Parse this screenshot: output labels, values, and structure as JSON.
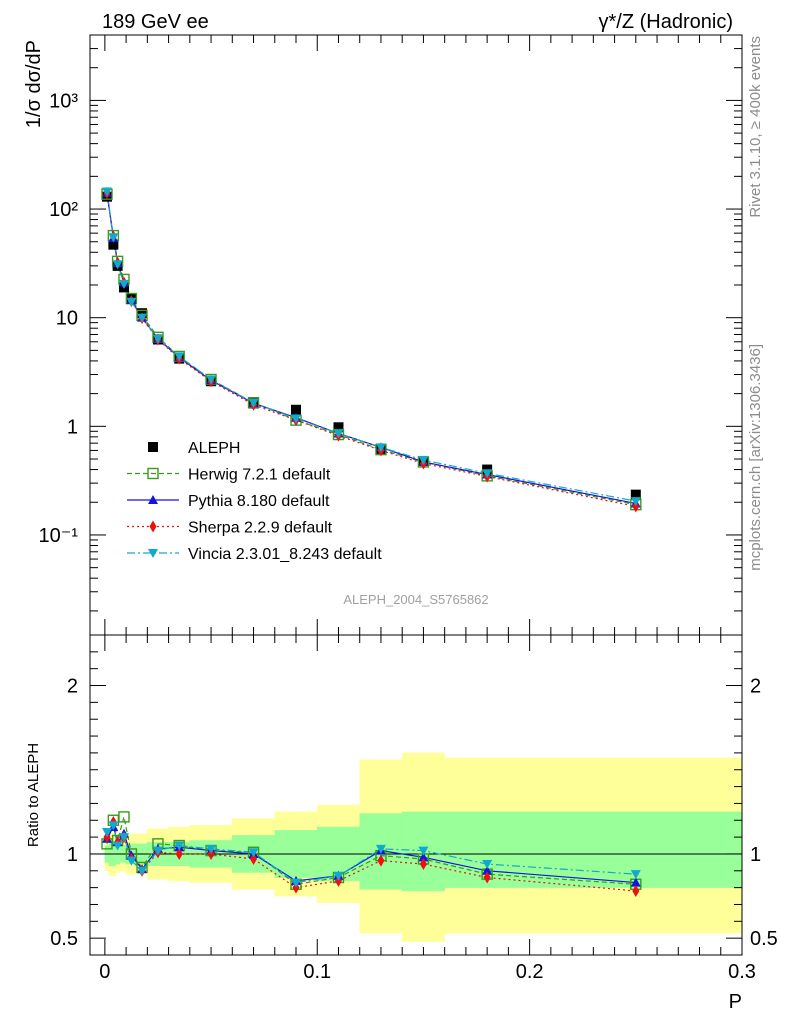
{
  "chart_data": [
    {
      "type": "scatter",
      "title_left": "189 GeV ee",
      "title_right": "γ*/Z (Hadronic)",
      "ylabel": "1/σ  dσ/dP",
      "yscale": "log",
      "ylim": [
        0.012,
        4000
      ],
      "xlim": [
        -0.007,
        0.3
      ],
      "y_tick_labels": [
        "10⁻¹",
        "1",
        "10",
        "10²",
        "10³"
      ],
      "analysis_tag": "ALEPH_2004_S5765862",
      "side_label_top": "Rivet 3.1.10, ≥ 400k events",
      "side_label_bottom": "mcplots.cern.ch [arXiv:1306.3436]",
      "x": [
        0.001,
        0.004,
        0.006,
        0.009,
        0.0125,
        0.0175,
        0.025,
        0.035,
        0.05,
        0.07,
        0.09,
        0.11,
        0.13,
        0.15,
        0.18,
        0.25
      ],
      "series": [
        {
          "name": "ALEPH",
          "color": "#000000",
          "marker": "square",
          "dash": "",
          "values": [
            130,
            47,
            30,
            19,
            15,
            11,
            6.3,
            4.2,
            2.6,
            1.62,
            1.42,
            0.98,
            0.62,
            0.48,
            0.4,
            0.235
          ]
        },
        {
          "name": "Herwig 7.2.1 default",
          "color": "#3a9a1c",
          "marker": "open-square",
          "dash": "5,3",
          "values": [
            137,
            57,
            33,
            22.5,
            15,
            10.5,
            6.6,
            4.4,
            2.7,
            1.65,
            1.14,
            0.84,
            0.61,
            0.47,
            0.35,
            0.19
          ]
        },
        {
          "name": "Pythia 8.180 default",
          "color": "#1414e0",
          "marker": "triangle-up",
          "dash": "",
          "values": [
            140,
            54,
            32,
            21,
            14.5,
            10,
            6.4,
            4.3,
            2.65,
            1.63,
            1.2,
            0.86,
            0.64,
            0.47,
            0.36,
            0.195
          ]
        },
        {
          "name": "Sherpa 2.2.9 default",
          "color": "#ee1010",
          "marker": "diamond",
          "dash": "2,3",
          "values": [
            141,
            56,
            32,
            21,
            14.2,
            9.9,
            6.3,
            4.2,
            2.6,
            1.58,
            1.14,
            0.82,
            0.6,
            0.455,
            0.345,
            0.183
          ]
        },
        {
          "name": "Vincia 2.3.01_8.243 default",
          "color": "#11aacc",
          "marker": "triangle-down",
          "dash": "8,3,2,3",
          "values": [
            145,
            55,
            31,
            20.5,
            14,
            10,
            6.4,
            4.4,
            2.7,
            1.64,
            1.18,
            0.86,
            0.64,
            0.49,
            0.37,
            0.205
          ]
        }
      ]
    },
    {
      "type": "scatter",
      "ylabel": "Ratio to ALEPH",
      "xlabel": "P",
      "ylim": [
        0.4,
        2.3
      ],
      "xlim": [
        -0.007,
        0.3
      ],
      "y_tick_labels": [
        "0.5",
        "1",
        "2"
      ],
      "x_tick_labels": [
        "0",
        "0.1",
        "0.2",
        "0.3"
      ],
      "bands": {
        "edges": [
          0,
          0.002,
          0.005,
          0.007,
          0.01,
          0.015,
          0.02,
          0.03,
          0.04,
          0.06,
          0.08,
          0.1,
          0.12,
          0.14,
          0.16,
          0.2,
          0.3
        ],
        "inner_lo": [
          0.95,
          0.93,
          0.94,
          0.95,
          0.94,
          0.94,
          0.93,
          0.93,
          0.92,
          0.89,
          0.86,
          0.84,
          0.79,
          0.78,
          0.8,
          0.8
        ],
        "inner_hi": [
          1.05,
          1.07,
          1.06,
          1.05,
          1.06,
          1.06,
          1.07,
          1.07,
          1.08,
          1.11,
          1.14,
          1.16,
          1.24,
          1.25,
          1.25,
          1.25
        ],
        "outer_lo": [
          0.9,
          0.87,
          0.89,
          0.9,
          0.88,
          0.88,
          0.85,
          0.84,
          0.83,
          0.79,
          0.75,
          0.71,
          0.53,
          0.48,
          0.53,
          0.53
        ],
        "outer_hi": [
          1.1,
          1.13,
          1.11,
          1.1,
          1.12,
          1.12,
          1.15,
          1.16,
          1.17,
          1.21,
          1.25,
          1.29,
          1.56,
          1.6,
          1.57,
          1.57
        ],
        "inner_color": "#99ff99",
        "outer_color": "#ffff99"
      },
      "series": [
        {
          "name": "Herwig 7.2.1 default",
          "values": [
            1.06,
            1.2,
            1.08,
            1.22,
            1.0,
            0.92,
            1.06,
            1.05,
            1.02,
            1.01,
            0.82,
            0.86,
            0.99,
            0.97,
            0.88,
            0.82
          ]
        },
        {
          "name": "Pythia 8.180 default",
          "values": [
            1.09,
            1.16,
            1.07,
            1.12,
            0.99,
            0.91,
            1.03,
            1.04,
            1.02,
            1.0,
            0.84,
            0.87,
            1.02,
            0.98,
            0.9,
            0.83
          ]
        },
        {
          "name": "Sherpa 2.2.9 default",
          "values": [
            1.1,
            1.19,
            1.07,
            1.1,
            0.97,
            0.9,
            1.01,
            1.0,
            1.0,
            0.97,
            0.8,
            0.84,
            0.96,
            0.94,
            0.86,
            0.78
          ]
        },
        {
          "name": "Vincia 2.3.01_8.243 default",
          "values": [
            1.13,
            1.17,
            1.05,
            1.1,
            0.96,
            0.9,
            1.02,
            1.05,
            1.03,
            1.01,
            0.83,
            0.87,
            1.03,
            1.02,
            0.94,
            0.88
          ]
        }
      ]
    }
  ]
}
